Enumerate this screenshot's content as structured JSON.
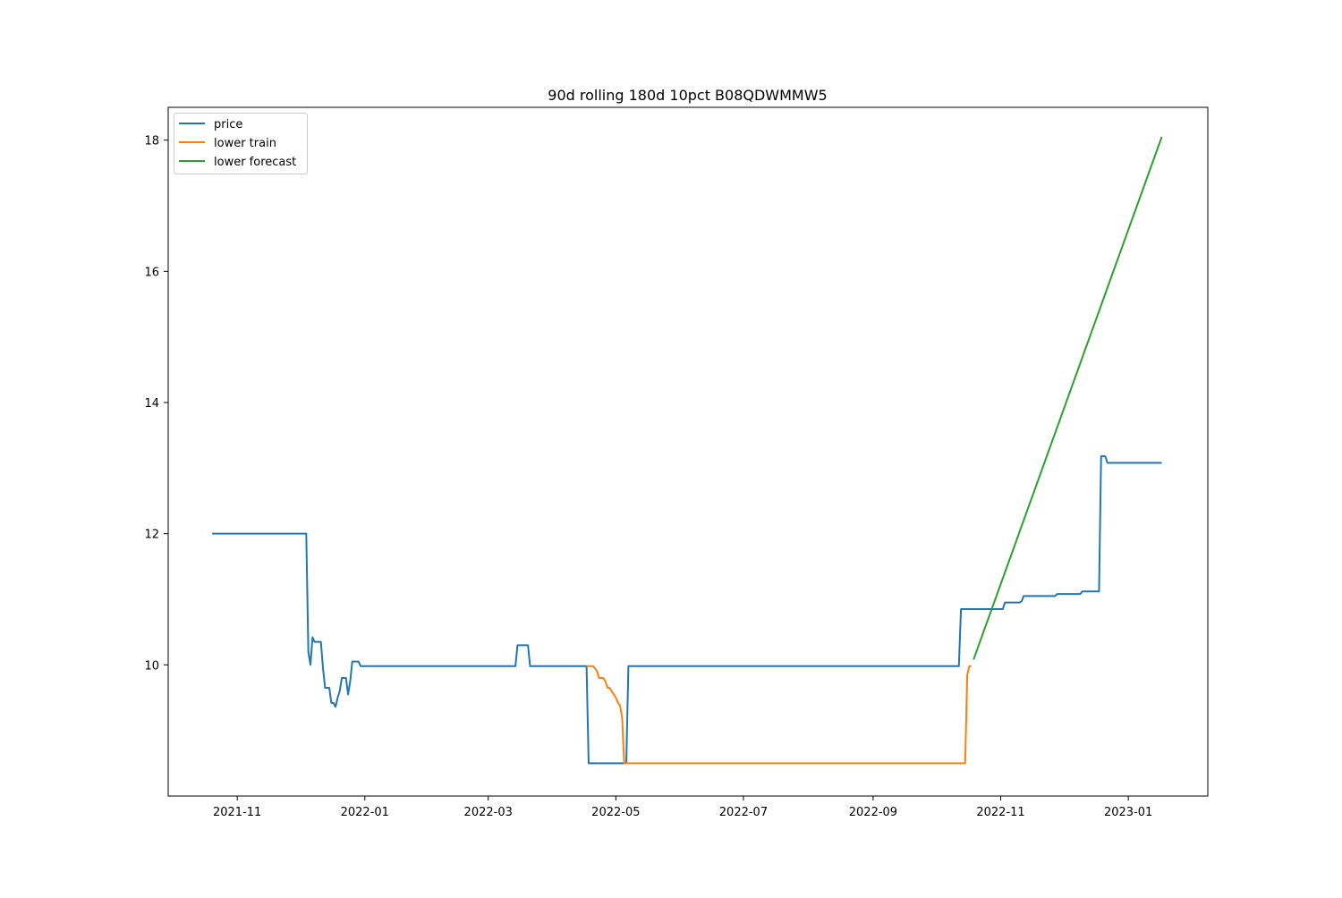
{
  "chart_data": {
    "type": "line",
    "title": "90d rolling 180d 10pct B08QDWMMW5",
    "xlabel": "",
    "ylabel": "",
    "x_scale": "date",
    "xlim": [
      "2021-09-29",
      "2023-02-08"
    ],
    "ylim": [
      8.0,
      18.5
    ],
    "x_ticks": [
      "2021-11-01",
      "2022-01-01",
      "2022-03-01",
      "2022-05-01",
      "2022-07-01",
      "2022-09-01",
      "2022-11-01",
      "2023-01-01"
    ],
    "x_tick_labels": [
      "2021-11",
      "2022-01",
      "2022-03",
      "2022-05",
      "2022-07",
      "2022-09",
      "2022-11",
      "2023-01"
    ],
    "y_ticks": [
      10,
      12,
      14,
      16,
      18
    ],
    "y_tick_labels": [
      "10",
      "12",
      "14",
      "16",
      "18"
    ],
    "grid": false,
    "legend_position": "top-left",
    "series": [
      {
        "name": "price",
        "color": "#1f77b4",
        "points": [
          [
            "2021-10-20",
            12.0
          ],
          [
            "2021-12-04",
            12.0
          ],
          [
            "2021-12-05",
            10.2
          ],
          [
            "2021-12-06",
            10.0
          ],
          [
            "2021-12-07",
            10.42
          ],
          [
            "2021-12-08",
            10.35
          ],
          [
            "2021-12-11",
            10.35
          ],
          [
            "2021-12-12",
            9.95
          ],
          [
            "2021-12-13",
            9.65
          ],
          [
            "2021-12-15",
            9.65
          ],
          [
            "2021-12-16",
            9.42
          ],
          [
            "2021-12-17",
            9.42
          ],
          [
            "2021-12-18",
            9.36
          ],
          [
            "2021-12-19",
            9.5
          ],
          [
            "2021-12-20",
            9.6
          ],
          [
            "2021-12-21",
            9.8
          ],
          [
            "2021-12-23",
            9.8
          ],
          [
            "2021-12-24",
            9.55
          ],
          [
            "2021-12-25",
            9.75
          ],
          [
            "2021-12-26",
            10.05
          ],
          [
            "2021-12-29",
            10.05
          ],
          [
            "2021-12-30",
            9.98
          ],
          [
            "2022-03-14",
            9.98
          ],
          [
            "2022-03-15",
            10.3
          ],
          [
            "2022-03-20",
            10.3
          ],
          [
            "2022-03-21",
            9.98
          ],
          [
            "2022-04-17",
            9.98
          ],
          [
            "2022-04-18",
            8.5
          ],
          [
            "2022-05-06",
            8.5
          ],
          [
            "2022-05-07",
            9.98
          ],
          [
            "2022-10-12",
            9.98
          ],
          [
            "2022-10-13",
            10.85
          ],
          [
            "2022-11-02",
            10.85
          ],
          [
            "2022-11-03",
            10.95
          ],
          [
            "2022-11-10",
            10.95
          ],
          [
            "2022-11-11",
            10.97
          ],
          [
            "2022-11-12",
            11.05
          ],
          [
            "2022-11-27",
            11.05
          ],
          [
            "2022-11-28",
            11.08
          ],
          [
            "2022-12-09",
            11.08
          ],
          [
            "2022-12-10",
            11.12
          ],
          [
            "2022-12-18",
            11.12
          ],
          [
            "2022-12-19",
            13.18
          ],
          [
            "2022-12-21",
            13.18
          ],
          [
            "2022-12-22",
            13.08
          ],
          [
            "2023-01-17",
            13.08
          ]
        ]
      },
      {
        "name": "lower train",
        "color": "#ff7f0e",
        "points": [
          [
            "2022-04-17",
            9.98
          ],
          [
            "2022-04-20",
            9.98
          ],
          [
            "2022-04-21",
            9.95
          ],
          [
            "2022-04-22",
            9.9
          ],
          [
            "2022-04-23",
            9.8
          ],
          [
            "2022-04-25",
            9.8
          ],
          [
            "2022-04-26",
            9.75
          ],
          [
            "2022-04-27",
            9.65
          ],
          [
            "2022-04-28",
            9.65
          ],
          [
            "2022-04-29",
            9.6
          ],
          [
            "2022-04-30",
            9.55
          ],
          [
            "2022-05-01",
            9.5
          ],
          [
            "2022-05-02",
            9.42
          ],
          [
            "2022-05-03",
            9.38
          ],
          [
            "2022-05-04",
            9.2
          ],
          [
            "2022-05-05",
            8.5
          ],
          [
            "2022-10-15",
            8.5
          ],
          [
            "2022-10-16",
            9.85
          ],
          [
            "2022-10-17",
            9.98
          ],
          [
            "2022-10-18",
            9.98
          ]
        ]
      },
      {
        "name": "lower forecast",
        "color": "#2ca02c",
        "points": [
          [
            "2022-10-19",
            10.08
          ],
          [
            "2023-01-17",
            18.05
          ]
        ]
      }
    ]
  }
}
